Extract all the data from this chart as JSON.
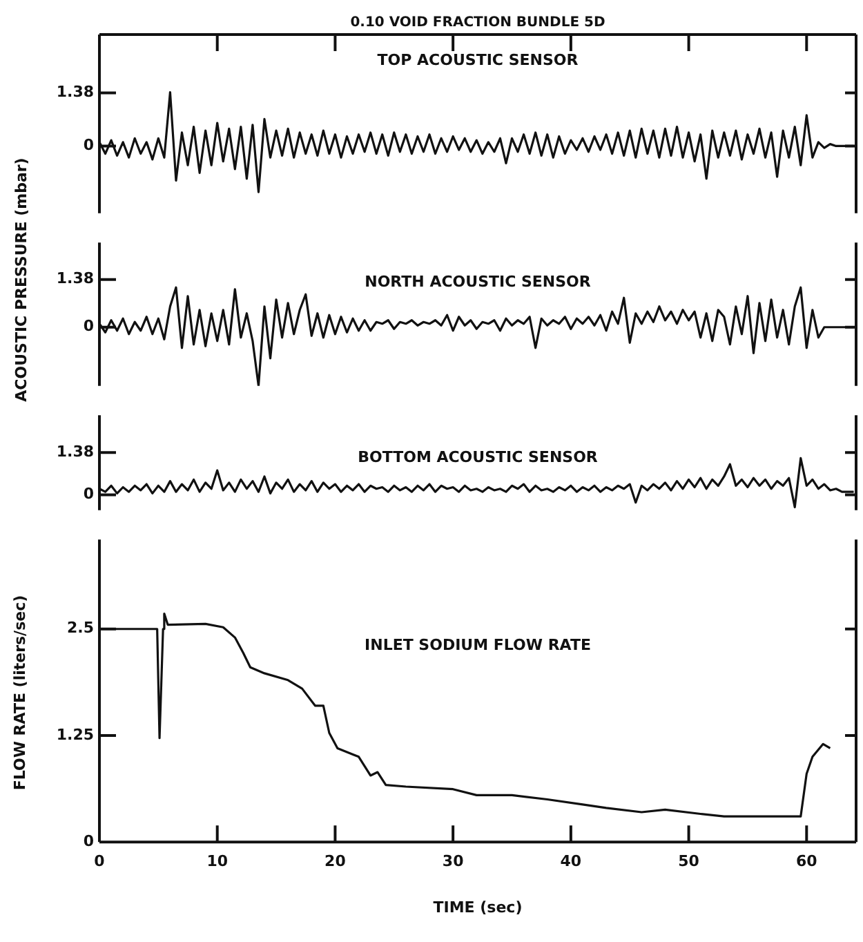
{
  "chart_data": [
    {
      "type": "line",
      "title": "0.10 VOID FRACTION BUNDLE 5D",
      "annotations": [
        "TOP ACOUSTIC SENSOR"
      ],
      "color": "#111111",
      "marker": "none",
      "tick_labels": "y",
      "xlim": [
        0,
        64.2
      ],
      "xticks": [
        10,
        20,
        30,
        40,
        50,
        60
      ],
      "ylim": [
        -1.75,
        2.9
      ],
      "yticks": [
        0,
        1.38
      ],
      "x": [
        0,
        0.5,
        1,
        1.5,
        2,
        2.5,
        3,
        3.5,
        4,
        4.5,
        5,
        5.5,
        6,
        6.5,
        7,
        7.5,
        8,
        8.5,
        9,
        9.5,
        10,
        10.5,
        11,
        11.5,
        12,
        12.5,
        13,
        13.5,
        14,
        14.5,
        15,
        15.5,
        16,
        16.5,
        17,
        17.5,
        18,
        18.5,
        19,
        19.5,
        20,
        20.5,
        21,
        21.5,
        22,
        22.5,
        23,
        23.5,
        24,
        24.5,
        25,
        25.5,
        26,
        26.5,
        27,
        27.5,
        28,
        28.5,
        29,
        29.5,
        30,
        30.5,
        31,
        31.5,
        32,
        32.5,
        33,
        33.5,
        34,
        34.5,
        35,
        35.5,
        36,
        36.5,
        37,
        37.5,
        38,
        38.5,
        39,
        39.5,
        40,
        40.5,
        41,
        41.5,
        42,
        42.5,
        43,
        43.5,
        44,
        44.5,
        45,
        45.5,
        46,
        46.5,
        47,
        47.5,
        48,
        48.5,
        49,
        49.5,
        50,
        50.5,
        51,
        51.5,
        52,
        52.5,
        53,
        53.5,
        54,
        54.5,
        55,
        55.5,
        56,
        56.5,
        57,
        57.5,
        58,
        58.5,
        59,
        59.5,
        60,
        60.5,
        61,
        61.5,
        62,
        62.5,
        63,
        63.5,
        64
      ],
      "values": [
        0.1,
        -0.2,
        0.15,
        -0.25,
        0.1,
        -0.3,
        0.2,
        -0.2,
        0.1,
        -0.35,
        0.2,
        -0.3,
        1.4,
        -0.9,
        0.35,
        -0.5,
        0.5,
        -0.7,
        0.4,
        -0.5,
        0.6,
        -0.4,
        0.45,
        -0.6,
        0.5,
        -0.85,
        0.55,
        -1.2,
        0.7,
        -0.3,
        0.4,
        -0.25,
        0.45,
        -0.3,
        0.35,
        -0.2,
        0.3,
        -0.25,
        0.4,
        -0.2,
        0.3,
        -0.3,
        0.25,
        -0.2,
        0.3,
        -0.15,
        0.35,
        -0.2,
        0.3,
        -0.25,
        0.35,
        -0.15,
        0.3,
        -0.2,
        0.25,
        -0.15,
        0.3,
        -0.2,
        0.2,
        -0.15,
        0.25,
        -0.1,
        0.2,
        -0.15,
        0.15,
        -0.2,
        0.1,
        -0.15,
        0.2,
        -0.45,
        0.2,
        -0.15,
        0.3,
        -0.2,
        0.35,
        -0.25,
        0.3,
        -0.3,
        0.25,
        -0.2,
        0.15,
        -0.1,
        0.2,
        -0.15,
        0.25,
        -0.1,
        0.3,
        -0.2,
        0.35,
        -0.25,
        0.4,
        -0.3,
        0.45,
        -0.2,
        0.4,
        -0.3,
        0.45,
        -0.25,
        0.5,
        -0.3,
        0.35,
        -0.4,
        0.3,
        -0.85,
        0.4,
        -0.3,
        0.35,
        -0.25,
        0.4,
        -0.35,
        0.3,
        -0.2,
        0.45,
        -0.3,
        0.35,
        -0.8,
        0.4,
        -0.3,
        0.5,
        -0.5,
        0.8,
        -0.3,
        0.1,
        -0.05,
        0.05,
        0,
        0,
        0,
        0
      ]
    },
    {
      "type": "line",
      "ylabel": "ACOUSTIC PRESSURE (mbar)",
      "annotations": [
        "NORTH ACOUSTIC SENSOR"
      ],
      "color": "#111111",
      "marker": "none",
      "tick_labels": "y",
      "xlim": [
        0,
        64.2
      ],
      "ylim": [
        -1.7,
        2.45
      ],
      "yticks": [
        0,
        1.38
      ],
      "x": [
        0,
        0.5,
        1,
        1.5,
        2,
        2.5,
        3,
        3.5,
        4,
        4.5,
        5,
        5.5,
        6,
        6.5,
        7,
        7.5,
        8,
        8.5,
        9,
        9.5,
        10,
        10.5,
        11,
        11.5,
        12,
        12.5,
        13,
        13.5,
        14,
        14.5,
        15,
        15.5,
        16,
        16.5,
        17,
        17.5,
        18,
        18.5,
        19,
        19.5,
        20,
        20.5,
        21,
        21.5,
        22,
        22.5,
        23,
        23.5,
        24,
        24.5,
        25,
        25.5,
        26,
        26.5,
        27,
        27.5,
        28,
        28.5,
        29,
        29.5,
        30,
        30.5,
        31,
        31.5,
        32,
        32.5,
        33,
        33.5,
        34,
        34.5,
        35,
        35.5,
        36,
        36.5,
        37,
        37.5,
        38,
        38.5,
        39,
        39.5,
        40,
        40.5,
        41,
        41.5,
        42,
        42.5,
        43,
        43.5,
        44,
        44.5,
        45,
        45.5,
        46,
        46.5,
        47,
        47.5,
        48,
        48.5,
        49,
        49.5,
        50,
        50.5,
        51,
        51.5,
        52,
        52.5,
        53,
        53.5,
        54,
        54.5,
        55,
        55.5,
        56,
        56.5,
        57,
        57.5,
        58,
        58.5,
        59,
        59.5,
        60,
        60.5,
        61,
        61.5,
        62,
        62.5,
        63,
        63.5,
        64
      ],
      "values": [
        0.1,
        -0.15,
        0.2,
        -0.1,
        0.25,
        -0.2,
        0.15,
        -0.1,
        0.3,
        -0.2,
        0.25,
        -0.35,
        0.6,
        1.15,
        -0.6,
        0.9,
        -0.5,
        0.5,
        -0.55,
        0.4,
        -0.4,
        0.5,
        -0.5,
        1.1,
        -0.3,
        0.4,
        -0.4,
        -1.7,
        0.6,
        -0.9,
        0.8,
        -0.3,
        0.7,
        -0.2,
        0.5,
        0.95,
        -0.25,
        0.4,
        -0.3,
        0.35,
        -0.2,
        0.3,
        -0.15,
        0.25,
        -0.1,
        0.2,
        -0.1,
        0.15,
        0.1,
        0.2,
        -0.05,
        0.15,
        0.1,
        0.2,
        0.05,
        0.15,
        0.1,
        0.2,
        0.05,
        0.35,
        -0.1,
        0.3,
        0.05,
        0.2,
        -0.05,
        0.15,
        0.1,
        0.2,
        -0.1,
        0.25,
        0.05,
        0.2,
        0.1,
        0.3,
        -0.6,
        0.25,
        0.05,
        0.2,
        0.1,
        0.3,
        -0.05,
        0.25,
        0.1,
        0.3,
        0.05,
        0.35,
        -0.1,
        0.45,
        0.1,
        0.85,
        -0.45,
        0.4,
        0.1,
        0.45,
        0.15,
        0.6,
        0.2,
        0.45,
        0.1,
        0.5,
        0.2,
        0.45,
        -0.3,
        0.4,
        -0.4,
        0.5,
        0.3,
        -0.5,
        0.6,
        -0.2,
        0.9,
        -0.75,
        0.7,
        -0.4,
        0.8,
        -0.3,
        0.5,
        -0.5,
        0.6,
        1.15,
        -0.6,
        0.5,
        -0.3,
        0,
        0,
        0,
        0,
        0,
        0
      ]
    },
    {
      "type": "line",
      "annotations": [
        "BOTTOM ACOUSTIC SENSOR"
      ],
      "color": "#111111",
      "marker": "none",
      "tick_labels": "y",
      "xlim": [
        0,
        64.2
      ],
      "ylim": [
        -0.5,
        2.6
      ],
      "yticks": [
        0,
        1.38
      ],
      "x": [
        0,
        0.5,
        1,
        1.5,
        2,
        2.5,
        3,
        3.5,
        4,
        4.5,
        5,
        5.5,
        6,
        6.5,
        7,
        7.5,
        8,
        8.5,
        9,
        9.5,
        10,
        10.5,
        11,
        11.5,
        12,
        12.5,
        13,
        13.5,
        14,
        14.5,
        15,
        15.5,
        16,
        16.5,
        17,
        17.5,
        18,
        18.5,
        19,
        19.5,
        20,
        20.5,
        21,
        21.5,
        22,
        22.5,
        23,
        23.5,
        24,
        24.5,
        25,
        25.5,
        26,
        26.5,
        27,
        27.5,
        28,
        28.5,
        29,
        29.5,
        30,
        30.5,
        31,
        31.5,
        32,
        32.5,
        33,
        33.5,
        34,
        34.5,
        35,
        35.5,
        36,
        36.5,
        37,
        37.5,
        38,
        38.5,
        39,
        39.5,
        40,
        40.5,
        41,
        41.5,
        42,
        42.5,
        43,
        43.5,
        44,
        44.5,
        45,
        45.5,
        46,
        46.5,
        47,
        47.5,
        48,
        48.5,
        49,
        49.5,
        50,
        50.5,
        51,
        51.5,
        52,
        52.5,
        53,
        53.5,
        54,
        54.5,
        55,
        55.5,
        56,
        56.5,
        57,
        57.5,
        58,
        58.5,
        59,
        59.5,
        60,
        60.5,
        61,
        61.5,
        62,
        62.5,
        63,
        63.5,
        64
      ],
      "values": [
        0.2,
        0.1,
        0.3,
        0.05,
        0.25,
        0.1,
        0.3,
        0.15,
        0.35,
        0.05,
        0.3,
        0.1,
        0.45,
        0.1,
        0.35,
        0.15,
        0.5,
        0.1,
        0.4,
        0.2,
        0.8,
        0.15,
        0.4,
        0.1,
        0.5,
        0.2,
        0.45,
        0.1,
        0.6,
        0.05,
        0.4,
        0.2,
        0.5,
        0.1,
        0.35,
        0.15,
        0.45,
        0.1,
        0.4,
        0.2,
        0.35,
        0.1,
        0.3,
        0.15,
        0.35,
        0.1,
        0.3,
        0.2,
        0.25,
        0.1,
        0.3,
        0.15,
        0.25,
        0.1,
        0.3,
        0.15,
        0.35,
        0.1,
        0.3,
        0.2,
        0.25,
        0.1,
        0.3,
        0.15,
        0.2,
        0.1,
        0.25,
        0.15,
        0.2,
        0.1,
        0.3,
        0.2,
        0.35,
        0.1,
        0.3,
        0.15,
        0.2,
        0.1,
        0.25,
        0.15,
        0.3,
        0.1,
        0.25,
        0.15,
        0.3,
        0.1,
        0.25,
        0.15,
        0.3,
        0.2,
        0.35,
        -0.25,
        0.3,
        0.15,
        0.35,
        0.2,
        0.4,
        0.15,
        0.45,
        0.2,
        0.5,
        0.25,
        0.55,
        0.2,
        0.5,
        0.3,
        0.6,
        1.0,
        0.3,
        0.5,
        0.25,
        0.55,
        0.3,
        0.5,
        0.2,
        0.45,
        0.3,
        0.55,
        -0.4,
        1.2,
        0.3,
        0.5,
        0.2,
        0.35,
        0.15,
        0.2,
        0.1,
        0.1,
        0.1
      ]
    },
    {
      "type": "line",
      "annotations": [
        "INLET SODIUM FLOW RATE"
      ],
      "xlabel": "TIME (sec)",
      "ylabel": "FLOW RATE (liters/sec)",
      "color": "#111111",
      "marker": "none",
      "xlim": [
        0,
        64.2
      ],
      "xticks": [
        0,
        10,
        20,
        30,
        40,
        50,
        60
      ],
      "ylim": [
        0,
        3.55
      ],
      "yticks": [
        0,
        1.25,
        2.5
      ],
      "x": [
        0,
        4.9,
        5.1,
        5.4,
        5.5,
        5.8,
        9,
        10.5,
        11.5,
        12.2,
        12.8,
        14,
        16,
        17.2,
        18.3,
        19,
        19.5,
        20.2,
        22,
        23,
        23.6,
        24.3,
        26,
        30,
        32,
        35,
        38,
        41,
        43,
        46,
        48,
        51,
        53,
        59.5,
        60,
        60.5,
        61.4,
        62
      ],
      "values": [
        2.5,
        2.5,
        1.22,
        2.5,
        2.68,
        2.55,
        2.56,
        2.52,
        2.4,
        2.22,
        2.05,
        1.98,
        1.9,
        1.8,
        1.6,
        1.6,
        1.28,
        1.1,
        1.0,
        0.78,
        0.82,
        0.67,
        0.65,
        0.62,
        0.55,
        0.55,
        0.5,
        0.44,
        0.4,
        0.35,
        0.38,
        0.33,
        0.3,
        0.3,
        0.8,
        1.0,
        1.15,
        1.1
      ]
    }
  ]
}
